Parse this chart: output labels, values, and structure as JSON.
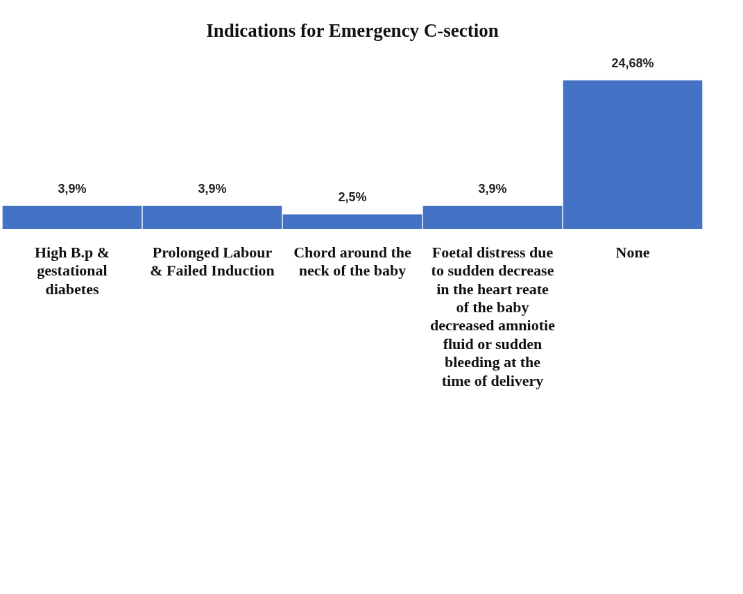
{
  "chart_data": {
    "type": "bar",
    "title": "Indications for Emergency C-section",
    "categories": [
      "High B.p & gestational diabetes",
      "Prolonged Labour & Failed Induction",
      "Chord around the neck of the baby",
      "Foetal distress due to sudden decrease in the heart reate of the baby decreased amniotie fluid or sudden bleeding at the time of delivery",
      "None"
    ],
    "values": [
      3.9,
      3.9,
      2.5,
      3.9,
      24.68
    ],
    "value_labels": [
      "3,9%",
      "3,9%",
      "2,5%",
      "3,9%",
      "24,68%"
    ],
    "color": "#4472c4",
    "legend": false,
    "grid": false
  }
}
